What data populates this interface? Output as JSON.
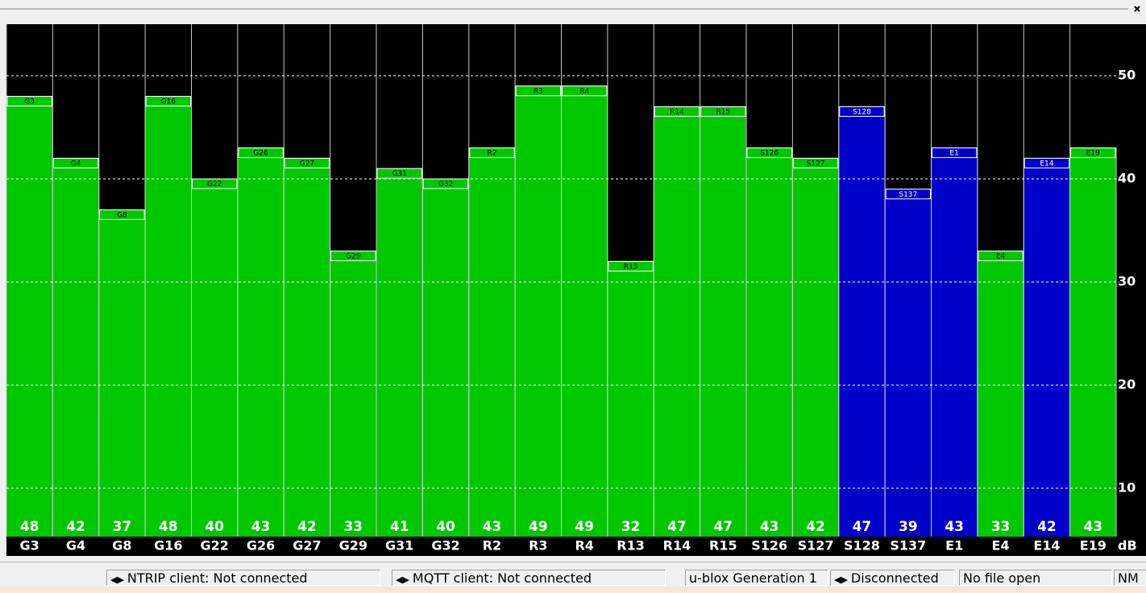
{
  "chart_data": {
    "type": "bar",
    "categories": [
      "G3",
      "G4",
      "G8",
      "G16",
      "G22",
      "G26",
      "G27",
      "G29",
      "G31",
      "G32",
      "R2",
      "R3",
      "R4",
      "R13",
      "R14",
      "R15",
      "S126",
      "S127",
      "S128",
      "S137",
      "E1",
      "E4",
      "E14",
      "E19"
    ],
    "values": [
      48,
      42,
      37,
      48,
      40,
      43,
      42,
      33,
      41,
      40,
      43,
      49,
      49,
      32,
      47,
      47,
      43,
      42,
      47,
      39,
      43,
      33,
      42,
      43
    ],
    "colors": [
      "#00c800",
      "#00c800",
      "#00c800",
      "#00c800",
      "#00c800",
      "#00c800",
      "#00c800",
      "#00c800",
      "#00c800",
      "#00c800",
      "#00c800",
      "#00c800",
      "#00c800",
      "#00c800",
      "#00c800",
      "#00c800",
      "#00c800",
      "#00c800",
      "#0000c8",
      "#0000c8",
      "#0000c8",
      "#00c800",
      "#0000c8",
      "#00c800"
    ],
    "ylim": [
      5,
      55
    ],
    "yticks": [
      10,
      20,
      30,
      40,
      50
    ],
    "y_unit": "dB",
    "grid": true
  },
  "status_bar": [
    "NTRIP client: Not connected",
    "MQTT client: Not connected",
    "u-blox Generation 1",
    "Disconnected",
    "No file open",
    "NM"
  ]
}
